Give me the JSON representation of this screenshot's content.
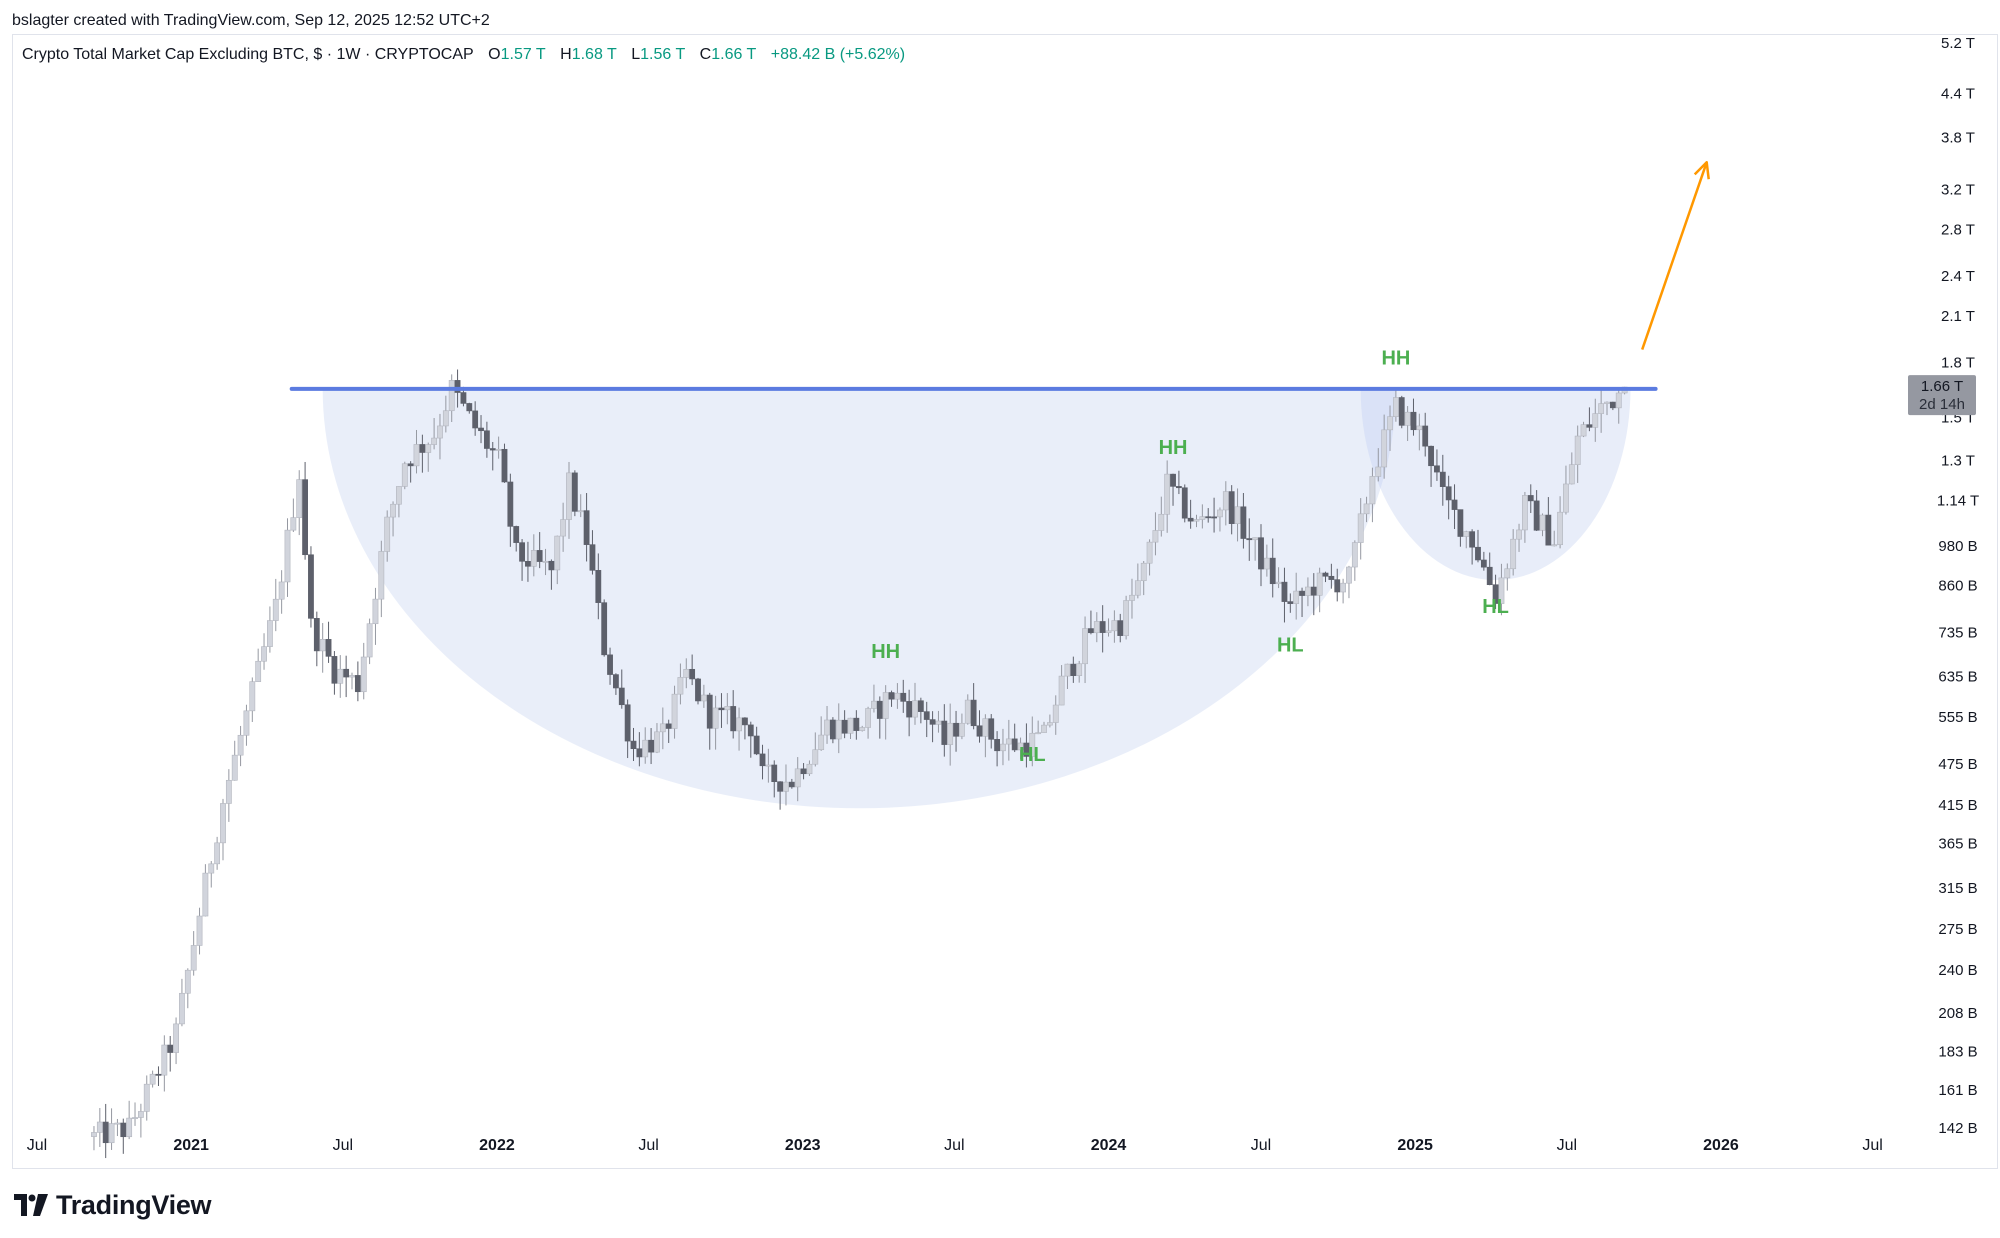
{
  "header": {
    "credit": "bslagter created with TradingView.com, Sep 12, 2025 12:52 UTC+2"
  },
  "legend": {
    "symbol": "Crypto Total Market Cap Excluding BTC, $ · 1W · CRYPTOCAP",
    "o_label": "O",
    "o_value": "1.57 T",
    "h_label": "H",
    "h_value": "1.68 T",
    "l_label": "L",
    "l_value": "1.56 T",
    "c_label": "C",
    "c_value": "1.66 T",
    "change": "+88.42 B (+5.62%)"
  },
  "price_badge": {
    "price": "1.66 T",
    "countdown": "2d 14h"
  },
  "brand": {
    "name": "TradingView"
  },
  "colors": {
    "up": "#089981",
    "candle_up": "#d1d4dc",
    "candle_down": "#5d606b",
    "resistance": "#5b7be0",
    "pattern_fill": "#e5ebf8",
    "overlap_fill": "#cfdaf6",
    "hh_hl_label": "#4caf50",
    "arrow": "#ff9800",
    "axis_text": "#131722",
    "badge_bg": "#9598a1"
  },
  "chart_data": {
    "type": "candlestick",
    "title": "Crypto Total Market Cap Excluding BTC, $ · 1W · CRYPTOCAP",
    "y_scale": "log",
    "y_ticks": [
      "5.2 T",
      "4.4 T",
      "3.8 T",
      "3.2 T",
      "2.8 T",
      "2.4 T",
      "2.1 T",
      "1.8 T",
      "1.5 T",
      "1.3 T",
      "1.14 T",
      "980 B",
      "860 B",
      "735 B",
      "635 B",
      "555 B",
      "475 B",
      "415 B",
      "365 B",
      "315 B",
      "275 B",
      "240 B",
      "208 B",
      "183 B",
      "161 B",
      "142 B"
    ],
    "y_tick_values": [
      5200,
      4400,
      3800,
      3200,
      2800,
      2400,
      2100,
      1800,
      1500,
      1300,
      1140,
      980,
      860,
      735,
      635,
      555,
      475,
      415,
      365,
      315,
      275,
      240,
      208,
      183,
      161,
      142
    ],
    "x_ticks": [
      {
        "label": "Jul",
        "date": "2020-07-01",
        "bold": false
      },
      {
        "label": "2021",
        "date": "2021-01-01",
        "bold": true
      },
      {
        "label": "Jul",
        "date": "2021-07-01",
        "bold": false
      },
      {
        "label": "2022",
        "date": "2022-01-01",
        "bold": true
      },
      {
        "label": "Jul",
        "date": "2022-07-01",
        "bold": false
      },
      {
        "label": "2023",
        "date": "2023-01-01",
        "bold": true
      },
      {
        "label": "Jul",
        "date": "2023-07-01",
        "bold": false
      },
      {
        "label": "2024",
        "date": "2024-01-01",
        "bold": true
      },
      {
        "label": "Jul",
        "date": "2024-07-01",
        "bold": false
      },
      {
        "label": "2025",
        "date": "2025-01-01",
        "bold": true
      },
      {
        "label": "Jul",
        "date": "2025-07-01",
        "bold": false
      },
      {
        "label": "2026",
        "date": "2026-01-01",
        "bold": true
      },
      {
        "label": "Jul",
        "date": "2026-07-01",
        "bold": false
      }
    ],
    "series_anchors": [
      [
        "2020-09-07",
        138
      ],
      [
        "2020-10-19",
        142
      ],
      [
        "2020-11-16",
        165
      ],
      [
        "2020-12-14",
        195
      ],
      [
        "2021-01-11",
        290
      ],
      [
        "2021-02-08",
        420
      ],
      [
        "2021-03-15",
        600
      ],
      [
        "2021-04-12",
        800
      ],
      [
        "2021-05-10",
        1250
      ],
      [
        "2021-05-24",
        750
      ],
      [
        "2021-06-21",
        650
      ],
      [
        "2021-07-19",
        620
      ],
      [
        "2021-08-23",
        1050
      ],
      [
        "2021-09-13",
        1300
      ],
      [
        "2021-10-18",
        1420
      ],
      [
        "2021-11-08",
        1650
      ],
      [
        "2021-12-06",
        1450
      ],
      [
        "2022-01-03",
        1300
      ],
      [
        "2022-01-24",
        950
      ],
      [
        "2022-03-07",
        900
      ],
      [
        "2022-03-28",
        1200
      ],
      [
        "2022-04-18",
        1000
      ],
      [
        "2022-05-09",
        700
      ],
      [
        "2022-06-13",
        500
      ],
      [
        "2022-07-18",
        520
      ],
      [
        "2022-08-15",
        640
      ],
      [
        "2022-09-12",
        560
      ],
      [
        "2022-10-31",
        540
      ],
      [
        "2022-11-14",
        455
      ],
      [
        "2022-12-19",
        450
      ],
      [
        "2023-01-30",
        540
      ],
      [
        "2023-03-13",
        540
      ],
      [
        "2023-04-17",
        600
      ],
      [
        "2023-05-29",
        560
      ],
      [
        "2023-06-19",
        510
      ],
      [
        "2023-07-17",
        570
      ],
      [
        "2023-08-21",
        510
      ],
      [
        "2023-09-18",
        505
      ],
      [
        "2023-10-16",
        520
      ],
      [
        "2023-11-06",
        620
      ],
      [
        "2023-12-11",
        740
      ],
      [
        "2024-01-15",
        760
      ],
      [
        "2024-02-12",
        900
      ],
      [
        "2024-03-11",
        1200
      ],
      [
        "2024-04-15",
        1050
      ],
      [
        "2024-05-20",
        1140
      ],
      [
        "2024-06-24",
        970
      ],
      [
        "2024-08-05",
        800
      ],
      [
        "2024-09-02",
        860
      ],
      [
        "2024-10-14",
        880
      ],
      [
        "2024-11-11",
        1250
      ],
      [
        "2024-12-09",
        1550
      ],
      [
        "2025-01-13",
        1400
      ],
      [
        "2025-02-03",
        1150
      ],
      [
        "2025-03-10",
        1000
      ],
      [
        "2025-04-07",
        830
      ],
      [
        "2025-05-12",
        1120
      ],
      [
        "2025-06-16",
        1000
      ],
      [
        "2025-07-14",
        1400
      ],
      [
        "2025-08-11",
        1550
      ],
      [
        "2025-09-08",
        1660
      ]
    ],
    "resistance": {
      "value": 1650,
      "from": "2021-05-01",
      "to": "2025-10-15"
    },
    "annotations": [
      {
        "text": "HH",
        "date": "2023-04-10",
        "value": 675
      },
      {
        "text": "HL",
        "date": "2023-10-02",
        "value": 480
      },
      {
        "text": "HH",
        "date": "2024-03-18",
        "value": 1330
      },
      {
        "text": "HL",
        "date": "2024-08-05",
        "value": 690
      },
      {
        "text": "HH",
        "date": "2024-12-09",
        "value": 1790
      },
      {
        "text": "HL",
        "date": "2025-04-07",
        "value": 785
      }
    ],
    "last": {
      "open": "1.57 T",
      "high": "1.68 T",
      "low": "1.56 T",
      "close": "1.66 T",
      "change": "+88.42 B (+5.62%)"
    }
  }
}
